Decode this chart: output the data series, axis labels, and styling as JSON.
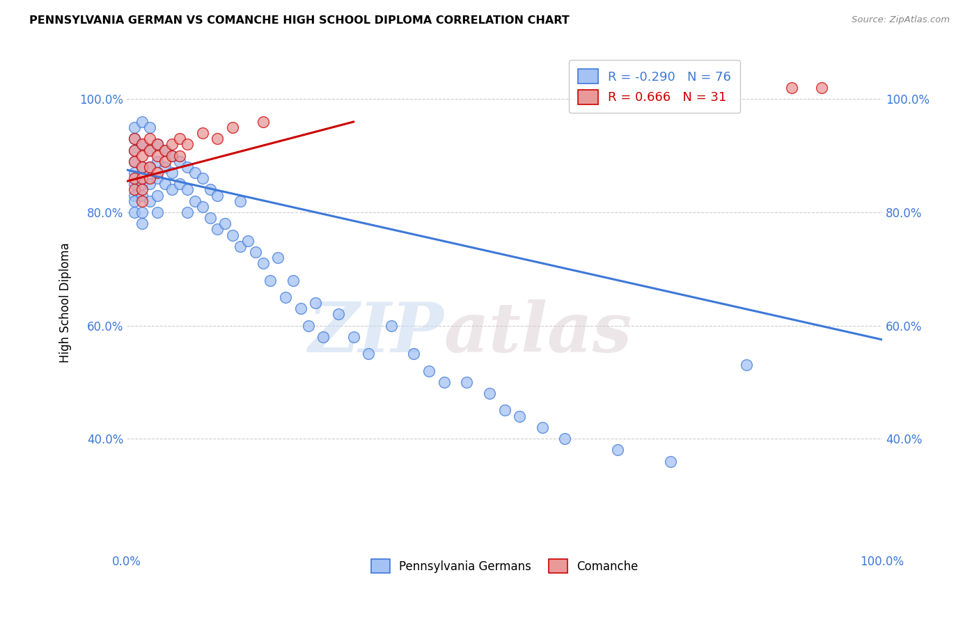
{
  "title": "PENNSYLVANIA GERMAN VS COMANCHE HIGH SCHOOL DIPLOMA CORRELATION CHART",
  "source": "Source: ZipAtlas.com",
  "ylabel": "High School Diploma",
  "xlim": [
    0.0,
    1.0
  ],
  "ylim": [
    0.2,
    1.08
  ],
  "yticks": [
    0.4,
    0.6,
    0.8,
    1.0
  ],
  "ytick_labels": [
    "40.0%",
    "60.0%",
    "80.0%",
    "100.0%"
  ],
  "blue_r": -0.29,
  "blue_n": 76,
  "pink_r": 0.666,
  "pink_n": 31,
  "blue_color": "#a4c2f4",
  "pink_color": "#ea9999",
  "blue_line_color": "#3d78d8",
  "pink_line_color": "#cc0000",
  "watermark_zip": "ZIP",
  "watermark_atlas": "atlas",
  "legend_label_1": "Pennsylvania Germans",
  "legend_label_2": "Comanche",
  "blue_x": [
    0.01,
    0.01,
    0.01,
    0.01,
    0.01,
    0.01,
    0.01,
    0.01,
    0.01,
    0.02,
    0.02,
    0.02,
    0.02,
    0.02,
    0.02,
    0.02,
    0.03,
    0.03,
    0.03,
    0.03,
    0.03,
    0.04,
    0.04,
    0.04,
    0.04,
    0.04,
    0.05,
    0.05,
    0.05,
    0.06,
    0.06,
    0.06,
    0.07,
    0.07,
    0.08,
    0.08,
    0.08,
    0.09,
    0.09,
    0.1,
    0.1,
    0.11,
    0.11,
    0.12,
    0.12,
    0.13,
    0.14,
    0.15,
    0.15,
    0.16,
    0.17,
    0.18,
    0.19,
    0.2,
    0.21,
    0.22,
    0.23,
    0.24,
    0.25,
    0.26,
    0.28,
    0.3,
    0.32,
    0.35,
    0.38,
    0.4,
    0.42,
    0.45,
    0.48,
    0.5,
    0.52,
    0.55,
    0.58,
    0.65,
    0.72,
    0.82
  ],
  "blue_y": [
    0.95,
    0.93,
    0.91,
    0.89,
    0.87,
    0.85,
    0.83,
    0.82,
    0.8,
    0.96,
    0.92,
    0.88,
    0.85,
    0.83,
    0.8,
    0.78,
    0.95,
    0.91,
    0.88,
    0.85,
    0.82,
    0.92,
    0.89,
    0.86,
    0.83,
    0.8,
    0.91,
    0.88,
    0.85,
    0.9,
    0.87,
    0.84,
    0.89,
    0.85,
    0.88,
    0.84,
    0.8,
    0.87,
    0.82,
    0.86,
    0.81,
    0.84,
    0.79,
    0.83,
    0.77,
    0.78,
    0.76,
    0.82,
    0.74,
    0.75,
    0.73,
    0.71,
    0.68,
    0.72,
    0.65,
    0.68,
    0.63,
    0.6,
    0.64,
    0.58,
    0.62,
    0.58,
    0.55,
    0.6,
    0.55,
    0.52,
    0.5,
    0.5,
    0.48,
    0.45,
    0.44,
    0.42,
    0.4,
    0.38,
    0.36,
    0.53
  ],
  "pink_x": [
    0.01,
    0.01,
    0.01,
    0.01,
    0.01,
    0.02,
    0.02,
    0.02,
    0.02,
    0.02,
    0.02,
    0.03,
    0.03,
    0.03,
    0.03,
    0.04,
    0.04,
    0.04,
    0.05,
    0.05,
    0.06,
    0.06,
    0.07,
    0.07,
    0.08,
    0.1,
    0.12,
    0.14,
    0.18,
    0.88,
    0.92
  ],
  "pink_y": [
    0.89,
    0.91,
    0.93,
    0.86,
    0.84,
    0.92,
    0.9,
    0.88,
    0.86,
    0.84,
    0.82,
    0.93,
    0.91,
    0.88,
    0.86,
    0.92,
    0.9,
    0.87,
    0.91,
    0.89,
    0.92,
    0.9,
    0.93,
    0.9,
    0.92,
    0.94,
    0.93,
    0.95,
    0.96,
    1.02,
    1.02
  ],
  "blue_trend_x": [
    0.0,
    1.0
  ],
  "blue_trend_y": [
    0.875,
    0.575
  ],
  "pink_trend_x": [
    0.0,
    0.3
  ],
  "pink_trend_y": [
    0.855,
    0.96
  ]
}
